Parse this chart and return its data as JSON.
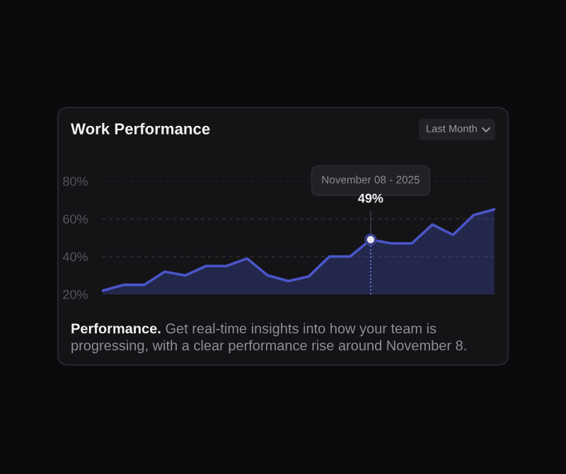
{
  "chart_data": {
    "type": "area",
    "title": "Work Performance",
    "categories": [
      null,
      null,
      null,
      null,
      null,
      null,
      null,
      null,
      null,
      null,
      null,
      null,
      null,
      null,
      null,
      null,
      null,
      null,
      null,
      null
    ],
    "series": [
      {
        "color": "#4a56c8",
        "values": [
          22,
          25,
          25,
          32,
          30,
          35,
          35,
          39,
          30,
          27,
          29.5,
          40,
          40,
          49,
          47,
          47,
          57,
          51.5,
          62,
          65
        ]
      }
    ],
    "ylim": [
      20,
      80
    ],
    "yticks": [
      {
        "value": 20,
        "label": "20%"
      },
      {
        "value": 40,
        "label": "40%"
      },
      {
        "value": 60,
        "label": "60%"
      },
      {
        "value": 80,
        "label": "80%"
      }
    ],
    "grid": "y",
    "marker": "none",
    "line_style": "solid",
    "tick_labels": "y",
    "annotations": [
      {
        "text": "November 08 - 2025\n49%",
        "y": 49
      },
      "Last Month",
      "Performance.",
      "Get real-time insights into how your team is progressing, with a clear performance rise around November 8."
    ]
  }
}
